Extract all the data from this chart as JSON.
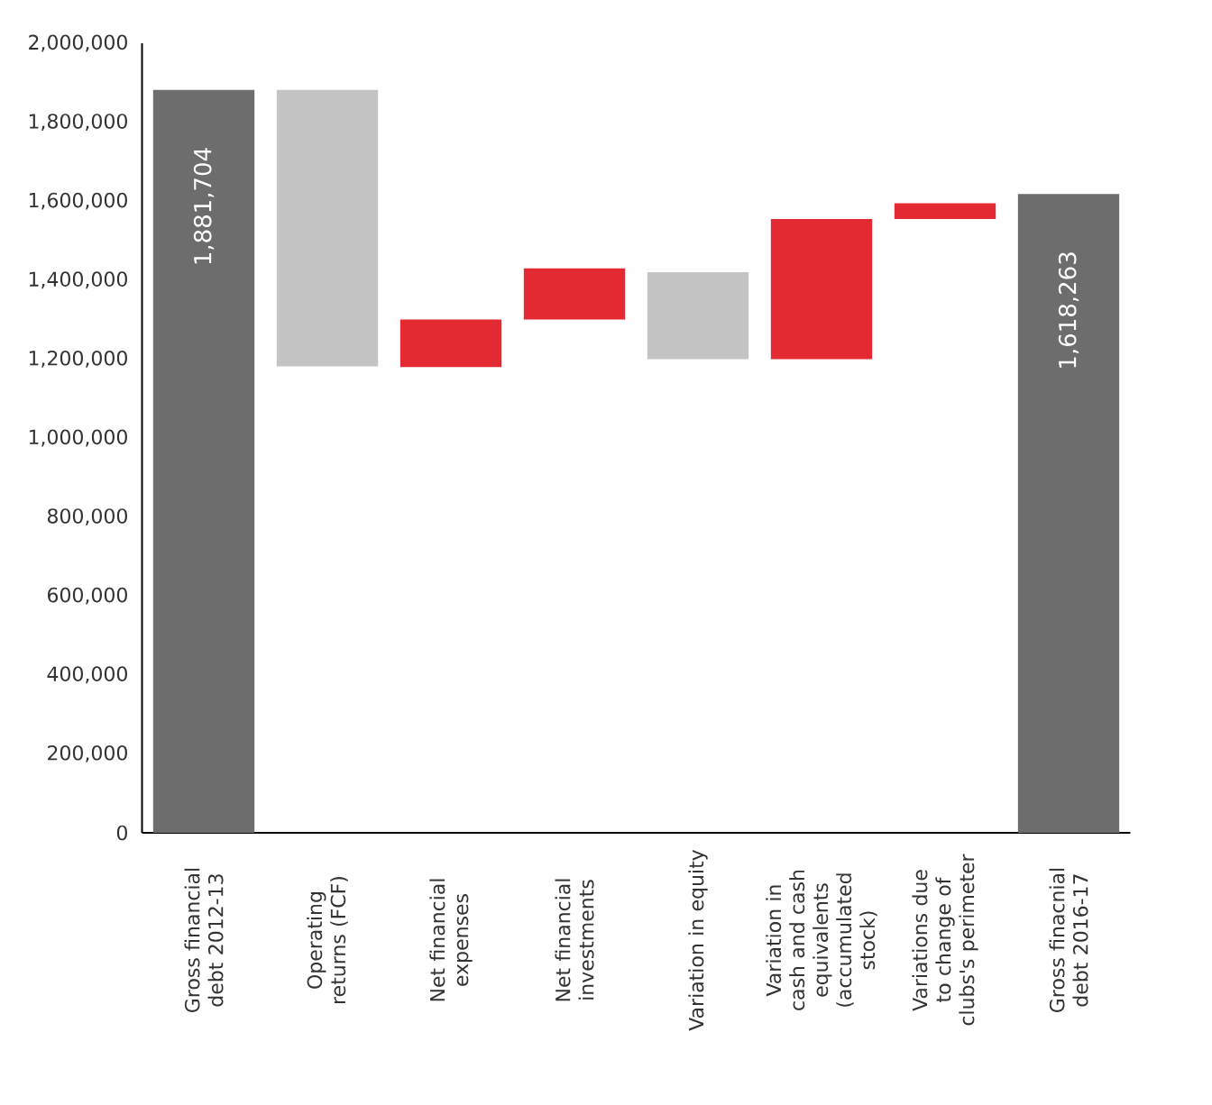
{
  "chart_data": {
    "type": "bar",
    "categories": [
      "Gross financial debt 2012-13",
      "Operating returns (FCF)",
      "Net financial expenses",
      "Net financial investments",
      "Variation in equity",
      "Variation in cash and cash equivalents (accumulated stock)",
      "Variations due to change of clubs's perimeter",
      "Gross finacnial debt 2016-17"
    ],
    "base": [
      0,
      1881704,
      1180000,
      1300000,
      1200000,
      1200000,
      1555000,
      0
    ],
    "values": [
      1881704,
      -700000,
      120000,
      130000,
      220000,
      355000,
      40000,
      1618263
    ],
    "colors": [
      "#6d6d6d",
      "#c4c4c4",
      "#e32931",
      "#e32931",
      "#c4c4c4",
      "#e32931",
      "#e32931",
      "#6d6d6d"
    ],
    "value_labels": [
      "1,881,704",
      null,
      null,
      null,
      null,
      null,
      null,
      "1,618,263"
    ],
    "ylim": [
      0,
      2000000
    ],
    "yticks": [
      {
        "value": 0,
        "label": "0"
      },
      {
        "value": 200000,
        "label": "200,000"
      },
      {
        "value": 400000,
        "label": "400,000"
      },
      {
        "value": 600000,
        "label": "600,000"
      },
      {
        "value": 800000,
        "label": "800,000"
      },
      {
        "value": 1000000,
        "label": "1,000,000"
      },
      {
        "value": 1200000,
        "label": "1,200,000"
      },
      {
        "value": 1400000,
        "label": "1,400,000"
      },
      {
        "value": 1600000,
        "label": "1,600,000"
      },
      {
        "value": 1800000,
        "label": "1,800,000"
      },
      {
        "value": 2000000,
        "label": "2,000,000"
      }
    ],
    "grid": false
  }
}
